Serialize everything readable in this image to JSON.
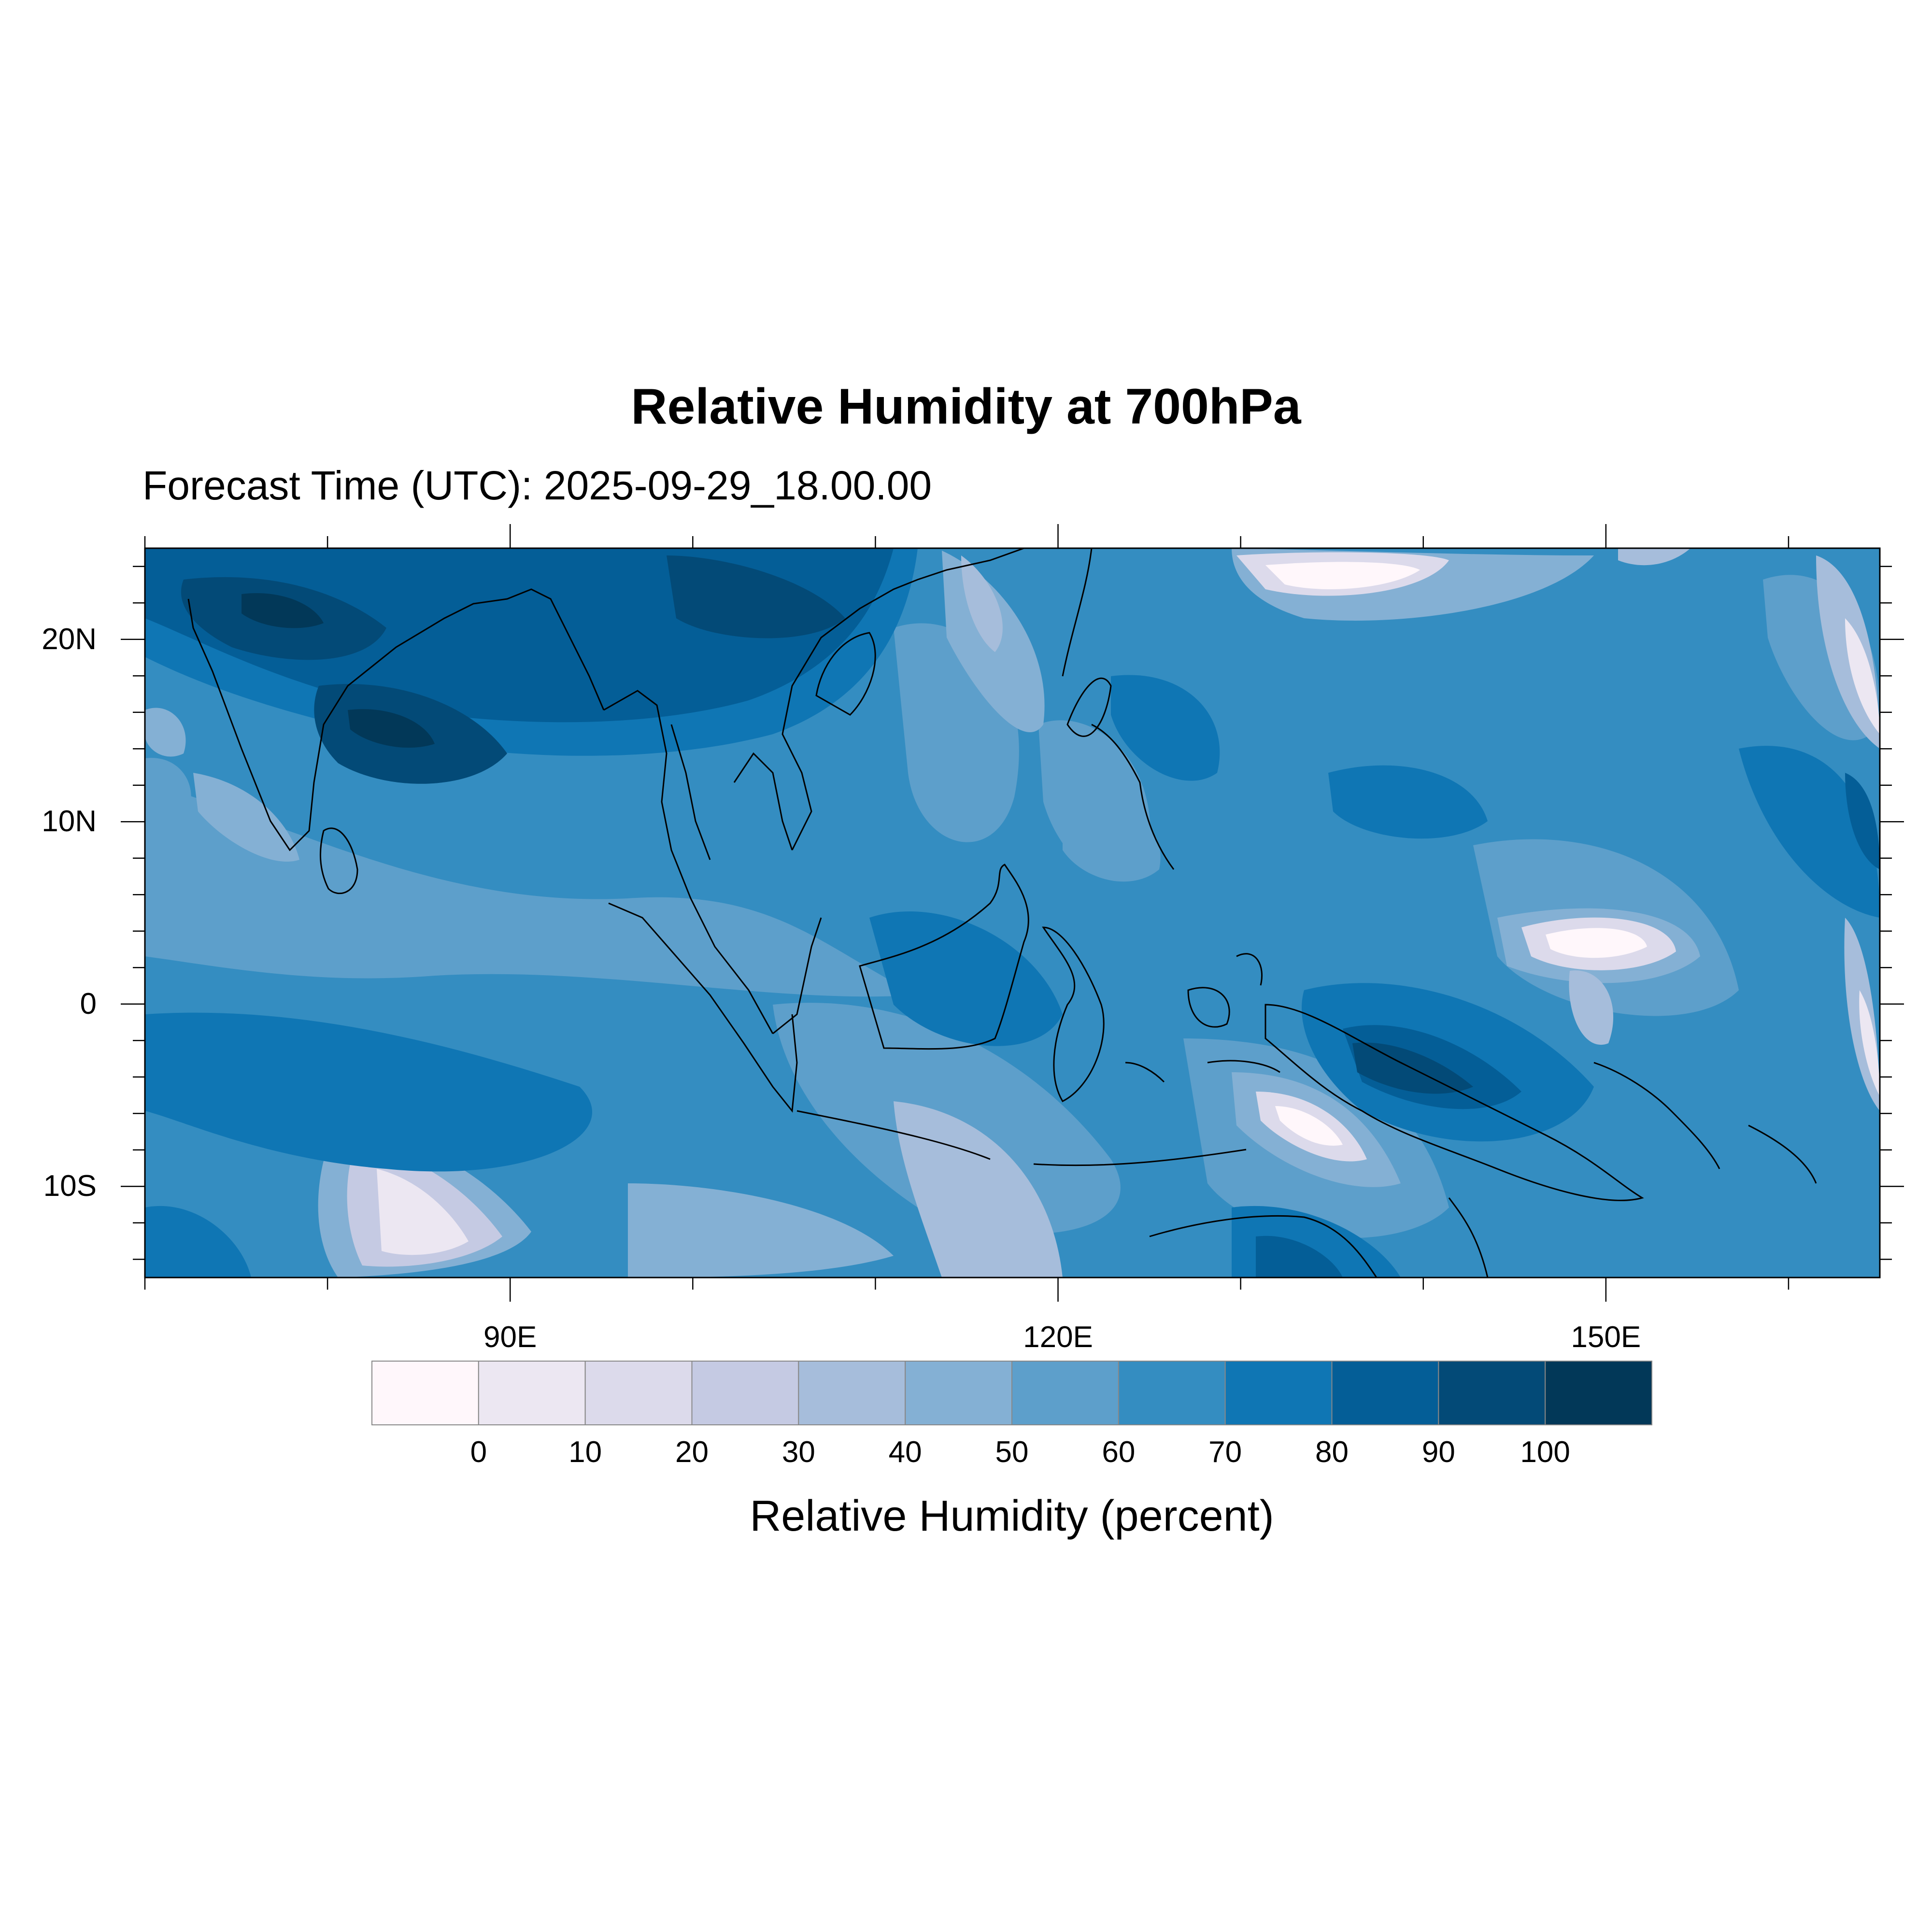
{
  "title": "Relative Humidity at 700hPa",
  "subtitle": "Forecast Time (UTC): 2025-09-29_18.00.00",
  "map": {
    "extent": {
      "lon_min": 70,
      "lon_max": 165,
      "lat_min": -15,
      "lat_max": 25
    },
    "lat_labels": [
      {
        "text": "20N",
        "lat": 20
      },
      {
        "text": "10N",
        "lat": 10
      },
      {
        "text": "0",
        "lat": 0
      },
      {
        "text": "10S",
        "lat": -10
      }
    ],
    "lon_labels": [
      {
        "text": "90E",
        "lon": 90
      },
      {
        "text": "120E",
        "lon": 120
      },
      {
        "text": "150E",
        "lon": 150
      }
    ]
  },
  "colorbar": {
    "title": "Relative Humidity (percent)",
    "levels": [
      "0",
      "10",
      "20",
      "30",
      "40",
      "50",
      "60",
      "70",
      "80",
      "90",
      "100"
    ],
    "colors": [
      "#fff7fb",
      "#ece7f2",
      "#dcdaeb",
      "#c5cae3",
      "#a6bddb",
      "#84b0d4",
      "#5d9fcb",
      "#348dc1",
      "#0f76b4",
      "#045e97",
      "#034a77",
      "#023858"
    ]
  }
}
